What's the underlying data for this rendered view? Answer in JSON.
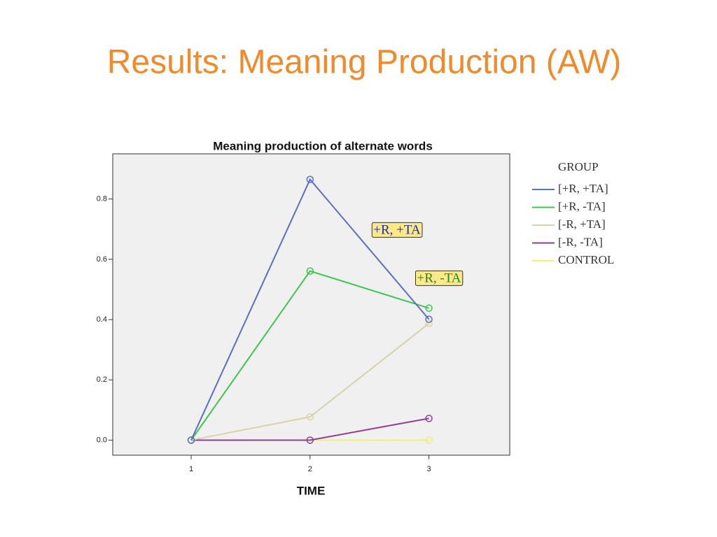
{
  "slide_title": "Results: Meaning Production (AW)",
  "chart_data": {
    "type": "line",
    "title": "Meaning production of alternate words",
    "x_label": "TIME",
    "x": [
      1,
      2,
      3
    ],
    "xlim": [
      0.34,
      3.68
    ],
    "xticks": [
      1,
      2,
      3
    ],
    "ylim": [
      -0.05,
      0.95
    ],
    "yticks": [
      {
        "value": 0,
        "label": "0.0"
      },
      {
        "value": 0.2,
        "label": "0.2"
      },
      {
        "value": 0.4,
        "label": "0.4"
      },
      {
        "value": 0.6,
        "label": "0.6"
      },
      {
        "value": 0.8,
        "label": "0.8"
      }
    ],
    "legend_title": "GROUP",
    "series": [
      {
        "name": "[+R, +TA]",
        "color": "#5b6fc0",
        "values": [
          0,
          0.865,
          0.401
        ]
      },
      {
        "name": "[+R, -TA]",
        "color": "#3ec451",
        "values": [
          0,
          0.561,
          0.438
        ]
      },
      {
        "name": "[-R, +TA]",
        "color": "#d8d3a6",
        "values": [
          0,
          0.077,
          0.387
        ]
      },
      {
        "name": "[-R, -TA]",
        "color": "#8e3e96",
        "values": [
          0,
          0,
          0.072
        ]
      },
      {
        "name": "CONTROL",
        "color": "#f3ee7a",
        "values": [
          0,
          0,
          0
        ]
      }
    ],
    "annotations": [
      "+R, +TA",
      "+R, -TA"
    ],
    "annotation_colors": [
      "#1a2fb0",
      "#1f8a1f"
    ]
  }
}
